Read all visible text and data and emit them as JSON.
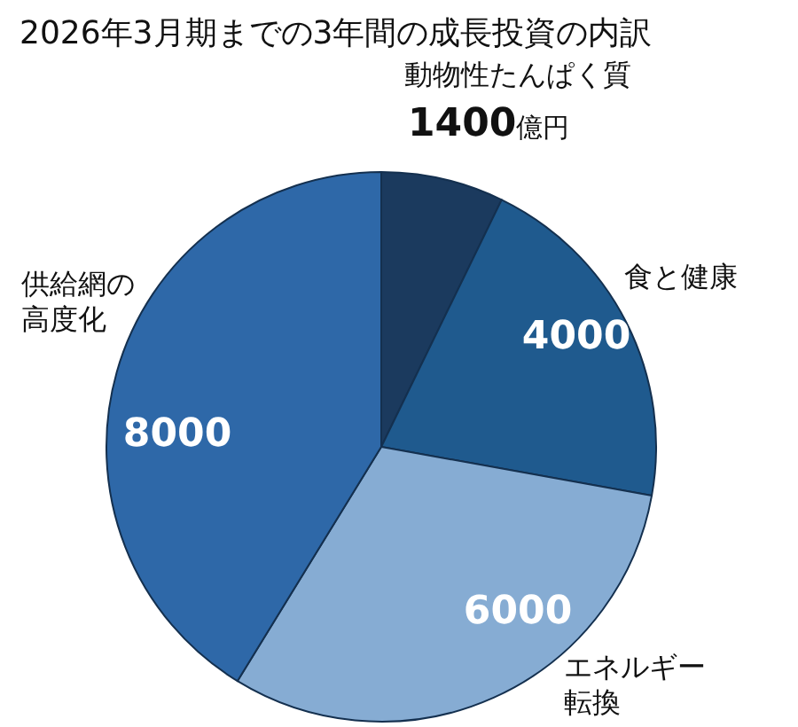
{
  "chart_data": {
    "type": "pie",
    "title": "2026年3月期までの3年間の成長投資の内訳",
    "categories": [
      "動物性たんぱく質",
      "食と健康",
      "エネルギー転換",
      "供給網の高度化"
    ],
    "values": [
      1400,
      4000,
      6000,
      8000
    ],
    "value_labels": [
      "1400億円",
      "4000",
      "6000",
      "8000"
    ],
    "colors": [
      "#1b3a5e",
      "#1f5a8e",
      "#86acd3",
      "#2e68a8"
    ]
  }
}
